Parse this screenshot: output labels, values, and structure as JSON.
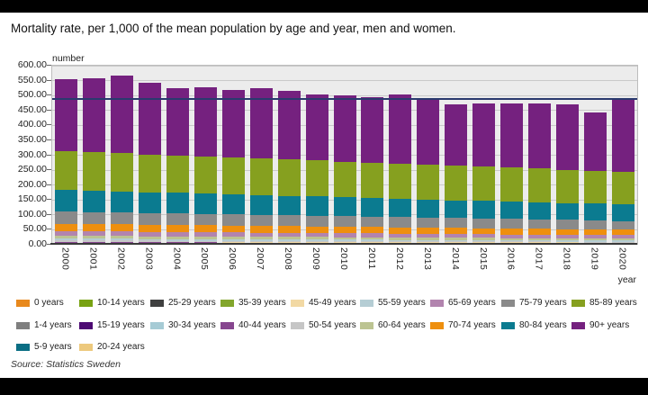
{
  "title": "Mortality rate, per 1,000 of the mean population by age and year, men and women.",
  "source": "Source: Statistics Sweden",
  "axis": {
    "y_label": "number",
    "x_label": "year"
  },
  "chart_data": {
    "type": "bar",
    "stacked": true,
    "title": "Mortality rate, per 1,000 of the mean population by age and year, men and women.",
    "xlabel": "year",
    "ylabel": "number",
    "ylim": [
      0,
      600
    ],
    "ytick_step": 50,
    "grid": "horizontal",
    "legend_position": "bottom",
    "reference_line": {
      "value": 491,
      "color": "#2a3a6e"
    },
    "categories": [
      2000,
      2001,
      2002,
      2003,
      2004,
      2005,
      2006,
      2007,
      2008,
      2009,
      2010,
      2011,
      2012,
      2013,
      2014,
      2015,
      2016,
      2017,
      2018,
      2019,
      2020
    ],
    "series": [
      {
        "name": "0 years",
        "color": "#e8891d",
        "values": [
          3.4,
          3.34,
          3.27,
          3.21,
          3.14,
          3.08,
          3.01,
          2.95,
          2.88,
          2.82,
          2.75,
          2.69,
          2.62,
          2.56,
          2.49,
          2.43,
          2.36,
          2.3,
          2.23,
          2.17,
          2.1
        ]
      },
      {
        "name": "1-4 years",
        "color": "#7f7f7f",
        "values": [
          0.2,
          0.2,
          0.2,
          0.19,
          0.19,
          0.19,
          0.19,
          0.18,
          0.18,
          0.18,
          0.18,
          0.17,
          0.17,
          0.17,
          0.17,
          0.16,
          0.16,
          0.16,
          0.16,
          0.15,
          0.15
        ]
      },
      {
        "name": "5-9 years",
        "color": "#0a6e84",
        "values": [
          0.1,
          0.1,
          0.1,
          0.1,
          0.1,
          0.1,
          0.1,
          0.1,
          0.1,
          0.1,
          0.1,
          0.1,
          0.1,
          0.1,
          0.1,
          0.1,
          0.1,
          0.1,
          0.1,
          0.1,
          0.1
        ]
      },
      {
        "name": "10-14 years",
        "color": "#78a212",
        "values": [
          0.15,
          0.15,
          0.15,
          0.14,
          0.14,
          0.14,
          0.14,
          0.13,
          0.13,
          0.13,
          0.13,
          0.12,
          0.12,
          0.12,
          0.12,
          0.11,
          0.11,
          0.11,
          0.11,
          0.1,
          0.1
        ]
      },
      {
        "name": "15-19 years",
        "color": "#4d0a73",
        "values": [
          0.45,
          0.44,
          0.44,
          0.43,
          0.42,
          0.41,
          0.41,
          0.4,
          0.39,
          0.38,
          0.38,
          0.37,
          0.36,
          0.35,
          0.35,
          0.34,
          0.33,
          0.32,
          0.32,
          0.31,
          0.3
        ]
      },
      {
        "name": "20-24 years",
        "color": "#edc97d",
        "values": [
          0.55,
          0.55,
          0.54,
          0.54,
          0.53,
          0.53,
          0.52,
          0.52,
          0.51,
          0.51,
          0.5,
          0.5,
          0.49,
          0.49,
          0.48,
          0.48,
          0.47,
          0.47,
          0.46,
          0.46,
          0.45
        ]
      },
      {
        "name": "25-29 years",
        "color": "#3f4040",
        "values": [
          0.6,
          0.6,
          0.59,
          0.59,
          0.58,
          0.58,
          0.57,
          0.57,
          0.56,
          0.56,
          0.55,
          0.55,
          0.54,
          0.54,
          0.53,
          0.53,
          0.52,
          0.52,
          0.51,
          0.51,
          0.5
        ]
      },
      {
        "name": "30-34 years",
        "color": "#a6cbd5",
        "values": [
          0.7,
          0.69,
          0.69,
          0.68,
          0.67,
          0.66,
          0.66,
          0.65,
          0.64,
          0.63,
          0.63,
          0.62,
          0.61,
          0.6,
          0.6,
          0.59,
          0.58,
          0.57,
          0.57,
          0.56,
          0.55
        ]
      },
      {
        "name": "35-39 years",
        "color": "#82a62c",
        "values": [
          0.9,
          0.89,
          0.88,
          0.87,
          0.86,
          0.85,
          0.84,
          0.83,
          0.82,
          0.81,
          0.8,
          0.79,
          0.78,
          0.77,
          0.76,
          0.75,
          0.74,
          0.73,
          0.72,
          0.71,
          0.7
        ]
      },
      {
        "name": "40-44 years",
        "color": "#87468f",
        "values": [
          1.4,
          1.38,
          1.36,
          1.34,
          1.32,
          1.3,
          1.28,
          1.26,
          1.24,
          1.22,
          1.2,
          1.18,
          1.16,
          1.14,
          1.12,
          1.1,
          1.08,
          1.06,
          1.04,
          1.02,
          1.0
        ]
      },
      {
        "name": "45-49 years",
        "color": "#f2d9a4",
        "values": [
          2.3,
          2.27,
          2.23,
          2.2,
          2.16,
          2.13,
          2.09,
          2.06,
          2.02,
          1.99,
          1.95,
          1.92,
          1.88,
          1.85,
          1.81,
          1.78,
          1.74,
          1.71,
          1.67,
          1.64,
          1.6
        ]
      },
      {
        "name": "50-54 years",
        "color": "#c6c6c6",
        "values": [
          3.8,
          3.74,
          3.68,
          3.62,
          3.56,
          3.5,
          3.44,
          3.38,
          3.32,
          3.26,
          3.2,
          3.14,
          3.08,
          3.02,
          2.96,
          2.9,
          2.84,
          2.78,
          2.72,
          2.66,
          2.6
        ]
      },
      {
        "name": "55-59 years",
        "color": "#b5cdd4",
        "values": [
          6.0,
          5.91,
          5.82,
          5.73,
          5.64,
          5.55,
          5.46,
          5.37,
          5.28,
          5.19,
          5.1,
          5.01,
          4.92,
          4.83,
          4.74,
          4.65,
          4.56,
          4.47,
          4.38,
          4.29,
          4.2
        ]
      },
      {
        "name": "60-64 years",
        "color": "#bcc492",
        "values": [
          9.5,
          9.37,
          9.23,
          9.1,
          8.96,
          8.83,
          8.69,
          8.56,
          8.42,
          8.29,
          8.15,
          8.02,
          7.88,
          7.75,
          7.61,
          7.48,
          7.34,
          7.21,
          7.07,
          6.94,
          6.8
        ]
      },
      {
        "name": "65-69 years",
        "color": "#b284ae",
        "values": [
          15.5,
          15.28,
          15.05,
          14.83,
          14.6,
          14.38,
          14.15,
          13.93,
          13.7,
          13.48,
          13.25,
          13.03,
          12.8,
          12.58,
          12.35,
          12.13,
          11.9,
          11.68,
          11.45,
          11.23,
          11.0
        ]
      },
      {
        "name": "70-74 years",
        "color": "#ee8f0e",
        "values": [
          25,
          24.65,
          24.3,
          23.95,
          23.6,
          23.25,
          22.9,
          22.55,
          22.2,
          21.85,
          21.5,
          21.15,
          20.8,
          20.45,
          20.1,
          19.75,
          19.4,
          19.05,
          18.7,
          18.35,
          18
        ]
      },
      {
        "name": "75-79 years",
        "color": "#8a8a8a",
        "values": [
          41,
          40.45,
          39.9,
          39.35,
          38.8,
          38.25,
          37.7,
          37.15,
          36.6,
          36.05,
          35.5,
          34.95,
          34.4,
          33.85,
          33.3,
          32.75,
          32.2,
          31.65,
          31.1,
          30.55,
          30
        ]
      },
      {
        "name": "80-84 years",
        "color": "#0b7b90",
        "values": [
          72,
          71.15,
          70.3,
          69.45,
          68.6,
          67.75,
          66.9,
          66.05,
          65.2,
          64.35,
          63.5,
          62.65,
          61.8,
          60.95,
          60.1,
          59.25,
          58.4,
          57.55,
          56.7,
          55.85,
          55
        ]
      },
      {
        "name": "85-89 years",
        "color": "#86a01f",
        "values": [
          130,
          129,
          128,
          127,
          126,
          125,
          124,
          123,
          122,
          121,
          120,
          119,
          118,
          117,
          116,
          115,
          114,
          113,
          112,
          111,
          110
        ]
      },
      {
        "name": "90+ years",
        "color": "#75217f",
        "values": [
          242.4,
          248.8,
          259.2,
          239.7,
          226.1,
          231.5,
          225.9,
          234.3,
          229.8,
          222.2,
          221.6,
          219,
          232.4,
          215.9,
          204.3,
          212.7,
          214.1,
          219.5,
          218,
          194.4,
          246.8
        ]
      }
    ]
  }
}
